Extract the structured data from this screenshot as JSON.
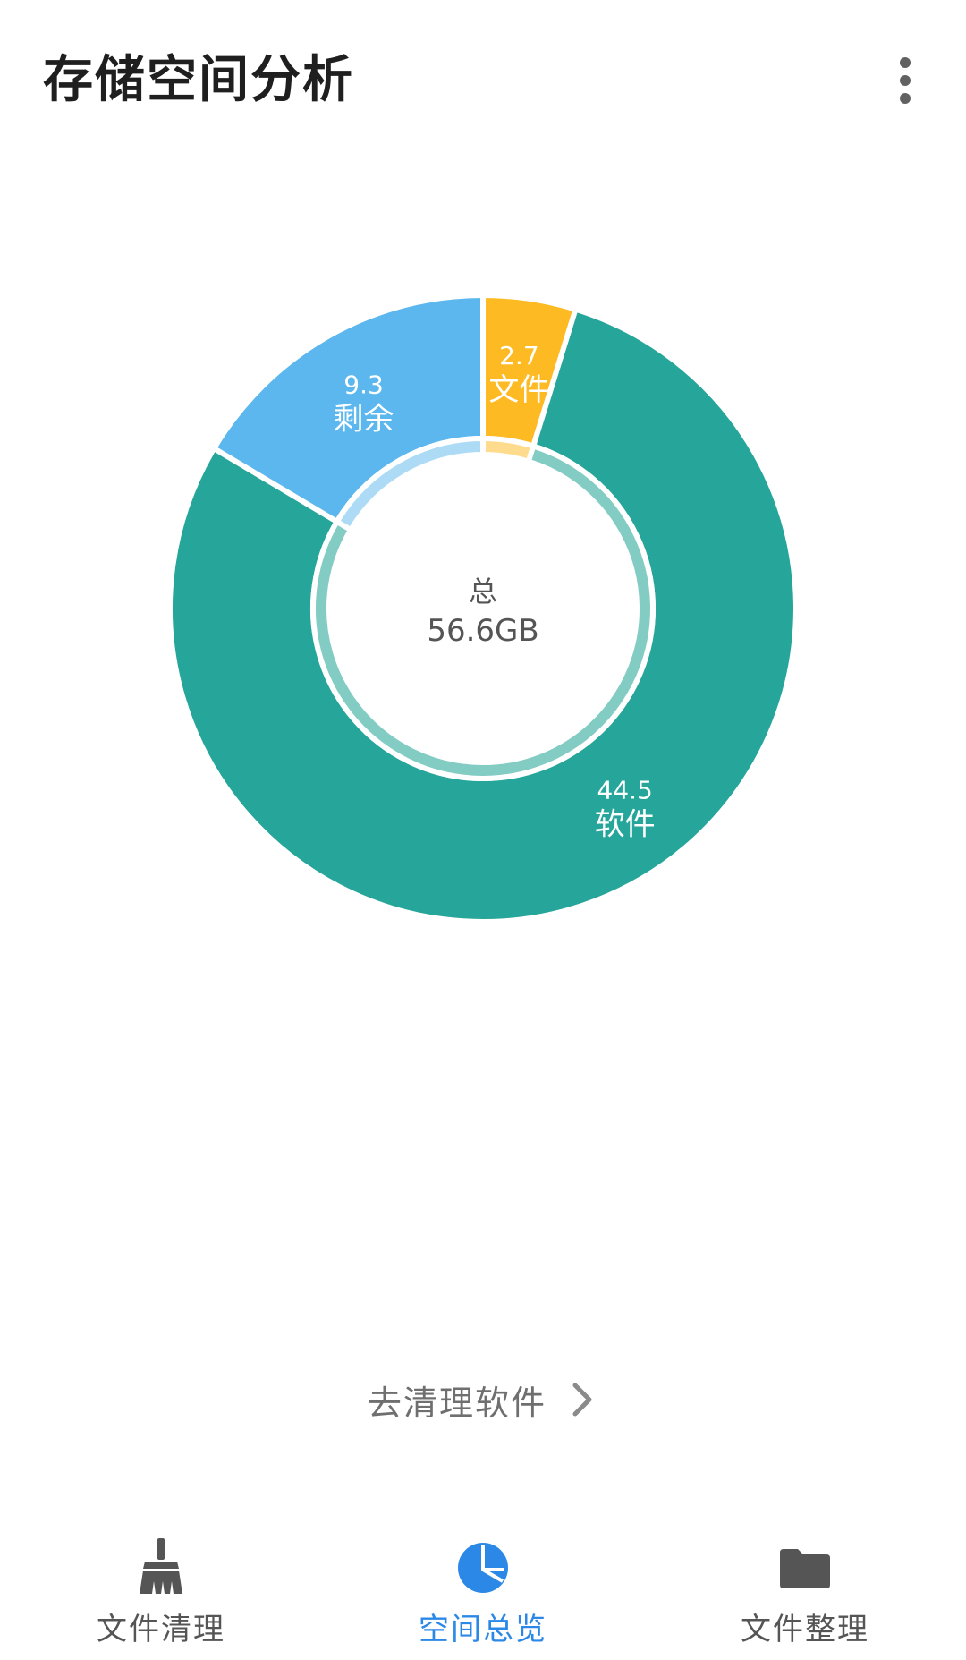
{
  "app_bar": {
    "title": "存储空间分析",
    "more_icon": "more-vert-icon"
  },
  "chart_data": {
    "type": "pie",
    "variant": "donut",
    "center_label": "总",
    "center_value": "56.6GB",
    "slices": [
      {
        "name": "文件",
        "value": 2.7,
        "value_label": "2.7",
        "color": "#FDBA22",
        "inner_color": "#FEDB8D"
      },
      {
        "name": "软件",
        "value": 44.5,
        "value_label": "44.5",
        "color": "#26A69A",
        "inner_color": "#82CCC4"
      },
      {
        "name": "剩余",
        "value": 9.3,
        "value_label": "9.3",
        "color": "#5BB7ED",
        "inner_color": "#ADDBF6"
      }
    ],
    "total": 56.6,
    "unit": "GB"
  },
  "clean_link": {
    "label": "去清理软件",
    "icon": "chevron-right-icon"
  },
  "bottom_nav": {
    "items": [
      {
        "label": "文件清理",
        "icon": "broom-icon",
        "active": false
      },
      {
        "label": "空间总览",
        "icon": "pie-chart-icon",
        "active": true
      },
      {
        "label": "文件整理",
        "icon": "folder-icon",
        "active": false
      }
    ],
    "active_color": "#2C88E6",
    "inactive_color": "#555555"
  }
}
